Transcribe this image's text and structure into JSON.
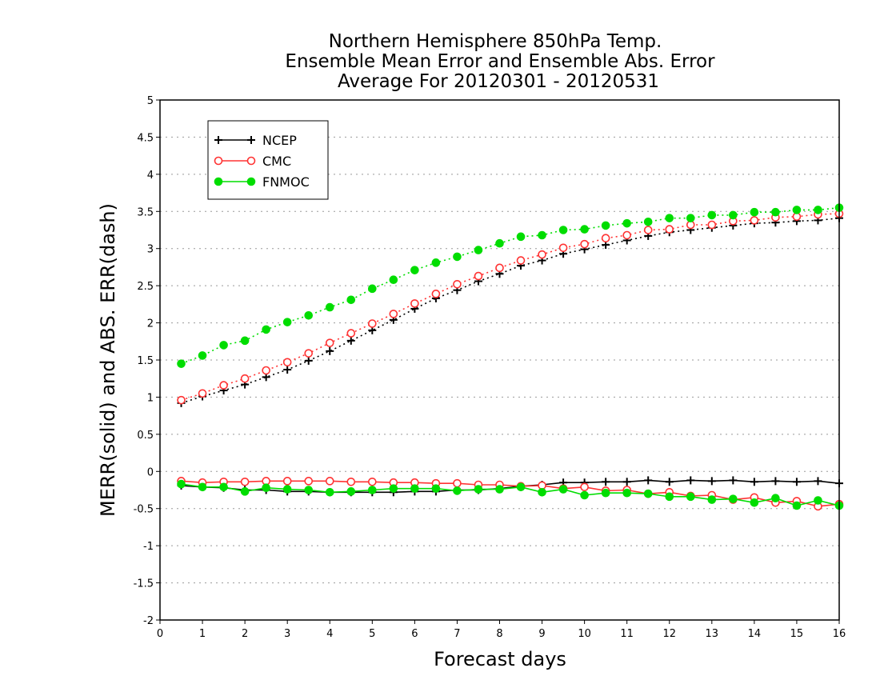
{
  "chart_data": {
    "type": "line",
    "title_lines": [
      "Northern Hemisphere 850hPa Temp.",
      "Ensemble Mean Error and Ensemble Abs. Error",
      "Average For 20120301 - 20120531"
    ],
    "xlabel": "Forecast days",
    "ylabel": "MERR(solid) and ABS. ERR(dash)",
    "xlim": [
      0,
      16
    ],
    "ylim": [
      -2,
      5
    ],
    "x_ticks": [
      "0",
      "1",
      "2",
      "3",
      "4",
      "5",
      "6",
      "7",
      "8",
      "9",
      "10",
      "11",
      "12",
      "13",
      "14",
      "15",
      "16"
    ],
    "y_ticks": [
      "5",
      "4.5",
      "4",
      "3.5",
      "3",
      "2.5",
      "2",
      "1.5",
      "1",
      "0.5",
      "0",
      "-0.5",
      "-1",
      "-1.5",
      "-2"
    ],
    "grid": true,
    "legend_position": "top-left",
    "x": [
      0.5,
      1,
      1.5,
      2,
      2.5,
      3,
      3.5,
      4,
      4.5,
      5,
      5.5,
      6,
      6.5,
      7,
      7.5,
      8,
      8.5,
      9,
      9.5,
      10,
      10.5,
      11,
      11.5,
      12,
      12.5,
      13,
      13.5,
      14,
      14.5,
      15,
      15.5,
      16
    ],
    "series": [
      {
        "name": "NCEP",
        "color": "#000000",
        "marker": "plus",
        "abs_error": [
          0.92,
          1.01,
          1.09,
          1.17,
          1.27,
          1.37,
          1.49,
          1.62,
          1.76,
          1.9,
          2.04,
          2.19,
          2.33,
          2.44,
          2.56,
          2.66,
          2.77,
          2.84,
          2.93,
          2.99,
          3.05,
          3.11,
          3.17,
          3.22,
          3.25,
          3.28,
          3.31,
          3.34,
          3.35,
          3.37,
          3.38,
          3.41
        ],
        "mean_error": [
          -0.19,
          -0.21,
          -0.22,
          -0.25,
          -0.25,
          -0.27,
          -0.27,
          -0.28,
          -0.28,
          -0.28,
          -0.28,
          -0.27,
          -0.27,
          -0.25,
          -0.25,
          -0.23,
          -0.2,
          -0.18,
          -0.15,
          -0.15,
          -0.14,
          -0.14,
          -0.12,
          -0.14,
          -0.12,
          -0.13,
          -0.12,
          -0.14,
          -0.13,
          -0.14,
          -0.13,
          -0.16
        ]
      },
      {
        "name": "CMC",
        "color": "#ff3333",
        "marker": "open-circle",
        "abs_error": [
          0.96,
          1.05,
          1.16,
          1.25,
          1.36,
          1.47,
          1.59,
          1.73,
          1.86,
          1.99,
          2.12,
          2.26,
          2.39,
          2.52,
          2.63,
          2.74,
          2.84,
          2.92,
          3.01,
          3.06,
          3.14,
          3.18,
          3.25,
          3.26,
          3.32,
          3.32,
          3.37,
          3.38,
          3.42,
          3.43,
          3.46,
          3.47
        ],
        "mean_error": [
          -0.13,
          -0.15,
          -0.14,
          -0.14,
          -0.13,
          -0.13,
          -0.13,
          -0.13,
          -0.14,
          -0.14,
          -0.15,
          -0.15,
          -0.16,
          -0.16,
          -0.18,
          -0.18,
          -0.2,
          -0.19,
          -0.23,
          -0.21,
          -0.26,
          -0.25,
          -0.3,
          -0.28,
          -0.33,
          -0.32,
          -0.38,
          -0.35,
          -0.42,
          -0.4,
          -0.47,
          -0.44
        ]
      },
      {
        "name": "FNMOC",
        "color": "#00dd00",
        "marker": "filled-circle",
        "abs_error": [
          1.45,
          1.56,
          1.7,
          1.76,
          1.91,
          2.01,
          2.1,
          2.21,
          2.31,
          2.46,
          2.58,
          2.71,
          2.81,
          2.89,
          2.98,
          3.07,
          3.16,
          3.18,
          3.25,
          3.26,
          3.31,
          3.34,
          3.36,
          3.41,
          3.41,
          3.45,
          3.45,
          3.49,
          3.49,
          3.52,
          3.52,
          3.55
        ],
        "mean_error": [
          -0.17,
          -0.21,
          -0.21,
          -0.27,
          -0.22,
          -0.24,
          -0.25,
          -0.28,
          -0.27,
          -0.25,
          -0.23,
          -0.23,
          -0.23,
          -0.26,
          -0.24,
          -0.24,
          -0.21,
          -0.28,
          -0.24,
          -0.32,
          -0.29,
          -0.29,
          -0.3,
          -0.34,
          -0.34,
          -0.38,
          -0.37,
          -0.42,
          -0.36,
          -0.46,
          -0.39,
          -0.46
        ]
      }
    ]
  }
}
